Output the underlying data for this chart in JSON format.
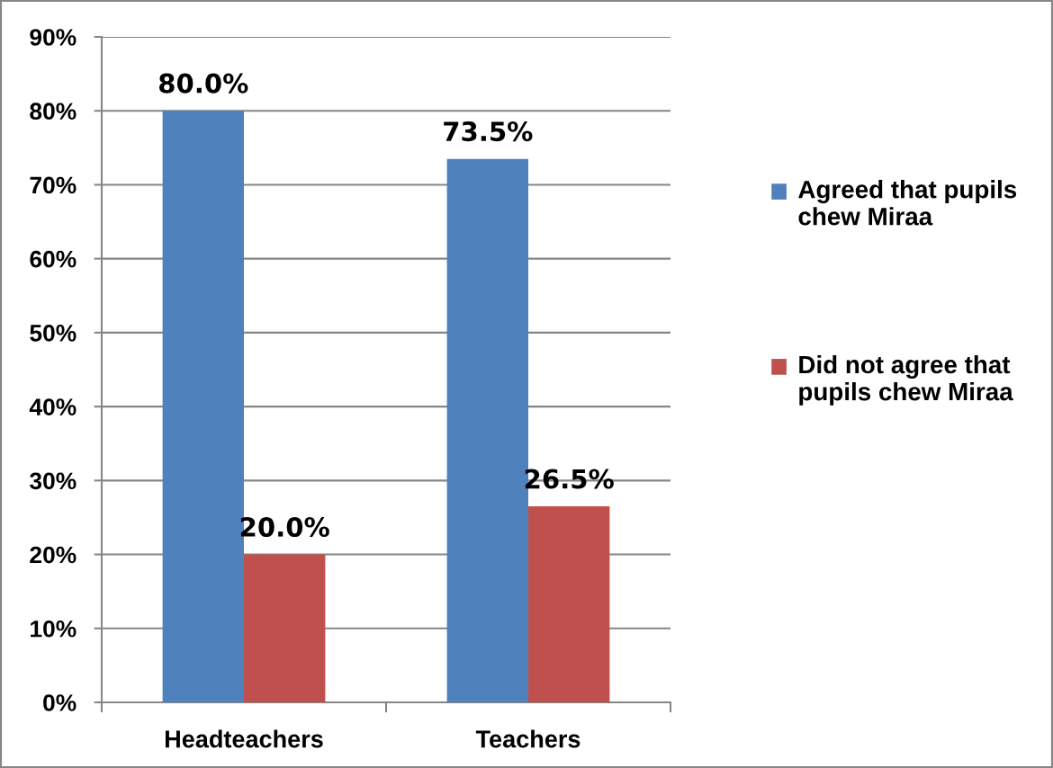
{
  "chart_data": {
    "type": "bar",
    "categories": [
      "Headteachers",
      "Teachers"
    ],
    "series": [
      {
        "name": "Agreed that pupils\nchew Miraa",
        "color": "#4f81bd",
        "values": [
          80.0,
          73.5
        ],
        "value_labels": [
          "80.0%",
          "73.5%"
        ]
      },
      {
        "name": "Did not agree that\npupils chew Miraa",
        "color": "#c0504d",
        "values": [
          20.0,
          26.5
        ],
        "value_labels": [
          "20.0%",
          "26.5%"
        ]
      }
    ],
    "ylim": [
      0,
      90
    ],
    "yticks": [
      {
        "value": 0,
        "label": "0%"
      },
      {
        "value": 10,
        "label": "10%"
      },
      {
        "value": 20,
        "label": "20%"
      },
      {
        "value": 30,
        "label": "30%"
      },
      {
        "value": 40,
        "label": "40%"
      },
      {
        "value": 50,
        "label": "50%"
      },
      {
        "value": 60,
        "label": "60%"
      },
      {
        "value": 70,
        "label": "70%"
      },
      {
        "value": 80,
        "label": "80%"
      },
      {
        "value": 90,
        "label": "90%"
      }
    ],
    "grid": "y",
    "legend": "right"
  }
}
